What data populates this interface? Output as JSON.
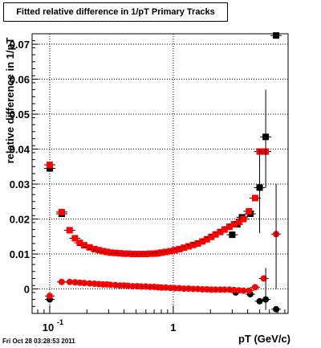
{
  "title": "Fitted relative difference in 1/pT  Primary Tracks",
  "footer": "Fri Oct 28 03:28:53 2011",
  "chart_data": {
    "type": "scatter",
    "title": "Fitted relative difference in 1/pT  Primary Tracks",
    "xlabel": "pT (GeV/c)",
    "ylabel": "relative difference in 1/pT",
    "xscale": "log",
    "xlim": [
      0.072,
      8.5
    ],
    "ylim": [
      -0.007,
      0.073
    ],
    "x_ticklabels": [
      "10^-1",
      "1"
    ],
    "y_ticks": [
      0,
      0.01,
      0.02,
      0.03,
      0.04,
      0.05,
      0.06,
      0.07
    ],
    "y_ticklabels": [
      "0",
      "0.01",
      "0.02",
      "0.03",
      "0.04",
      "0.05",
      "0.06",
      "0.07"
    ],
    "grid": true,
    "series": [
      {
        "marker": "square",
        "color": "#000000",
        "x": [
          0.1,
          0.125,
          3.0,
          3.3,
          3.6,
          4.2,
          5.0,
          5.6,
          6.8
        ],
        "y": [
          0.0345,
          0.0215,
          0.0155,
          0.0185,
          0.0205,
          0.0215,
          0.029,
          0.0435,
          0.0725
        ]
      },
      {
        "marker": "square",
        "color": "#ff0000",
        "x": [
          0.1,
          0.125,
          0.145,
          0.16,
          0.175,
          0.19,
          0.21,
          0.23,
          0.25,
          0.27,
          0.29,
          0.31,
          0.34,
          0.37,
          0.4,
          0.43,
          0.47,
          0.51,
          0.55,
          0.6,
          0.65,
          0.7,
          0.75,
          0.8,
          0.87,
          0.95,
          1.03,
          1.12,
          1.22,
          1.33,
          1.45,
          1.58,
          1.72,
          1.87,
          2.03,
          2.2,
          2.4,
          2.6,
          2.85,
          3.1,
          3.4,
          3.7,
          4.1,
          4.6,
          5.0,
          5.6
        ],
        "y": [
          0.0355,
          0.022,
          0.0168,
          0.0145,
          0.0132,
          0.0125,
          0.0119,
          0.0114,
          0.0111,
          0.0108,
          0.0106,
          0.0104,
          0.0103,
          0.0102,
          0.0101,
          0.0101,
          0.01,
          0.01,
          0.01,
          0.01,
          0.0101,
          0.0101,
          0.0102,
          0.0104,
          0.0106,
          0.0108,
          0.0111,
          0.0114,
          0.0118,
          0.0122,
          0.0126,
          0.013,
          0.0136,
          0.0142,
          0.0149,
          0.0156,
          0.0163,
          0.017,
          0.0178,
          0.0185,
          0.0192,
          0.02,
          0.0222,
          0.026,
          0.0393,
          0.0393
        ]
      },
      {
        "marker": "circle",
        "color": "#000000",
        "x": [
          0.1,
          3.2,
          4.2,
          5.0,
          5.6,
          6.8
        ],
        "y": [
          -0.003,
          -0.001,
          -0.0015,
          -0.0035,
          -0.003,
          -0.0058
        ]
      },
      {
        "marker": "circle",
        "color": "#ff0000",
        "x": [
          0.1,
          0.125,
          0.145,
          0.16,
          0.175,
          0.19,
          0.21,
          0.23,
          0.25,
          0.27,
          0.29,
          0.31,
          0.34,
          0.37,
          0.4,
          0.43,
          0.47,
          0.51,
          0.55,
          0.6,
          0.65,
          0.7,
          0.75,
          0.8,
          0.87,
          0.95,
          1.03,
          1.12,
          1.22,
          1.33,
          1.45,
          1.58,
          1.72,
          1.87,
          2.03,
          2.2,
          2.4,
          2.6,
          2.85,
          3.1,
          3.4,
          3.7,
          4.1,
          4.6,
          5.4,
          6.8
        ],
        "y": [
          -0.002,
          0.002,
          0.002,
          0.0019,
          0.0018,
          0.0017,
          0.0016,
          0.0015,
          0.0014,
          0.0013,
          0.0013,
          0.0012,
          0.0011,
          0.001,
          0.001,
          0.0009,
          0.0008,
          0.0008,
          0.0007,
          0.0007,
          0.0006,
          0.0006,
          0.0005,
          0.0004,
          0.0004,
          0.0003,
          0.0002,
          0.0002,
          0.0001,
          0.0001,
          0.0,
          0.0,
          -0.0001,
          -0.0001,
          -0.0002,
          -0.0002,
          -0.0002,
          -0.0002,
          -0.0002,
          -0.0003,
          -0.0004,
          -0.0005,
          -0.0005,
          0.0005,
          0.003,
          0.0157
        ]
      }
    ]
  }
}
